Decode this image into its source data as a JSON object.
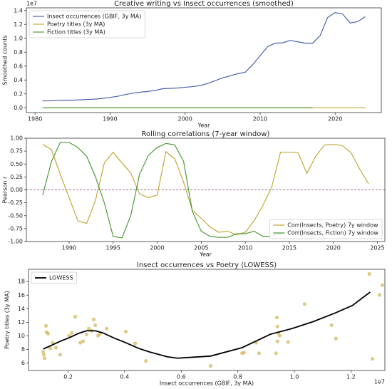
{
  "chart_data": [
    {
      "type": "line",
      "title": "Creative writing vs Insect occurrences (smoothed)",
      "x_label": "Year",
      "y_label": "Smoothed counts",
      "y_offset_label": "1e7",
      "x": [
        1981,
        1982,
        1983,
        1984,
        1985,
        1986,
        1987,
        1988,
        1989,
        1990,
        1991,
        1992,
        1993,
        1994,
        1995,
        1996,
        1997,
        1998,
        1999,
        2000,
        2001,
        2002,
        2003,
        2004,
        2005,
        2006,
        2007,
        2008,
        2009,
        2010,
        2011,
        2012,
        2013,
        2014,
        2015,
        2016,
        2017,
        2018,
        2019,
        2020,
        2021,
        2022,
        2023,
        2024
      ],
      "series": [
        {
          "name": "Insect occurrences (GBIF, 3y MA)",
          "color": "#4c62ad",
          "values": [
            0.1,
            0.1,
            0.105,
            0.11,
            0.11,
            0.115,
            0.12,
            0.125,
            0.135,
            0.15,
            0.165,
            0.19,
            0.21,
            0.225,
            0.235,
            0.25,
            0.275,
            0.28,
            0.285,
            0.295,
            0.305,
            0.32,
            0.35,
            0.39,
            0.43,
            0.46,
            0.49,
            0.51,
            0.62,
            0.75,
            0.88,
            0.93,
            0.935,
            0.97,
            0.95,
            0.93,
            0.93,
            1.04,
            1.3,
            1.37,
            1.35,
            1.22,
            1.24,
            1.31
          ]
        },
        {
          "name": "Poetry titles (3y MA)",
          "color": "#c2a93a",
          "values": [
            0,
            0,
            0,
            0,
            0,
            0,
            0,
            0,
            0,
            0,
            0,
            0,
            0,
            0,
            0,
            0,
            0,
            0,
            0,
            0,
            0,
            0,
            0,
            0,
            0,
            0,
            0,
            0,
            0,
            0,
            0,
            0,
            0,
            0,
            0,
            0,
            0,
            0,
            0,
            0,
            0,
            0,
            0,
            0
          ]
        },
        {
          "name": "Fiction titles (3y MA)",
          "color": "#4f9a3a",
          "values": [
            0,
            0,
            0,
            0,
            0,
            0,
            0,
            0,
            0,
            0,
            0,
            0,
            0,
            0,
            0,
            0,
            0,
            0,
            0,
            0,
            0,
            0,
            0,
            0,
            0,
            0,
            0,
            0,
            0,
            0,
            0,
            0,
            0,
            0,
            0,
            0,
            0,
            null,
            null,
            null,
            null,
            null,
            null,
            null
          ]
        }
      ],
      "xlim": [
        1978.85,
        2026.15
      ],
      "xticks": [
        1980,
        1990,
        2000,
        2010,
        2020
      ],
      "ylim": [
        -0.0685,
        1.4385
      ],
      "yticks": [
        {
          "value": 0,
          "label": "0.0"
        },
        0.2,
        0.4,
        0.6,
        0.8,
        {
          "value": 1,
          "label": "1.0"
        },
        1.2,
        1.4
      ],
      "legend": "upper left",
      "grid": false
    },
    {
      "type": "line",
      "title": "Rolling correlations (7-year window)",
      "x_label": "Year",
      "y_label": "Pearson r",
      "x": [
        1987,
        1988,
        1989,
        1990,
        1991,
        1992,
        1993,
        1994,
        1995,
        1996,
        1997,
        1998,
        1999,
        2000,
        2001,
        2002,
        2003,
        2004,
        2005,
        2006,
        2007,
        2008,
        2009,
        2010,
        2011,
        2012,
        2013,
        2014,
        2015,
        2016,
        2017,
        2018,
        2019,
        2020,
        2021,
        2022,
        2023,
        2024
      ],
      "series": [
        {
          "name": "Corr(Insects, Poetry) 7y window",
          "color": "#c2a93a",
          "values": [
            0.88,
            0.78,
            0.3,
            -0.15,
            -0.6,
            -0.65,
            -0.2,
            0.52,
            0.73,
            0.52,
            0.33,
            -0.08,
            -0.15,
            -0.1,
            0.74,
            0.6,
            0.15,
            -0.4,
            -0.55,
            -0.72,
            -0.82,
            -0.8,
            -0.87,
            -0.82,
            -0.6,
            -0.3,
            0.05,
            0.73,
            0.73,
            0.72,
            0.32,
            0.65,
            0.87,
            0.88,
            0.86,
            0.72,
            0.4,
            0.12
          ]
        },
        {
          "name": "Corr(Insects, Fiction) 7y window",
          "color": "#4f9a3a",
          "values": [
            -0.1,
            0.55,
            0.92,
            0.92,
            0.82,
            0.65,
            0.25,
            -0.25,
            -0.9,
            -0.93,
            -0.5,
            0.3,
            0.67,
            0.82,
            0.9,
            0.87,
            0.55,
            -0.42,
            -0.8,
            -0.9,
            -0.92,
            -0.92,
            -0.85,
            -0.85,
            -0.8,
            -0.9,
            -0.9,
            -0.85,
            -0.8,
            -0.8,
            -0.75,
            null,
            null,
            null,
            null,
            null,
            null,
            null
          ]
        }
      ],
      "hlines": [
        {
          "value": 0,
          "color": "#a06a9a",
          "style": "dashed"
        }
      ],
      "xlim": [
        1985.15,
        2025.85
      ],
      "xticks": [
        1990,
        1995,
        2000,
        2005,
        2010,
        2015,
        2020,
        2025
      ],
      "ylim": [
        -1,
        1
      ],
      "yticks": [
        {
          "value": -1,
          "label": "-1.00"
        },
        {
          "value": -0.75,
          "label": "-0.75"
        },
        {
          "value": -0.5,
          "label": "-0.50"
        },
        {
          "value": -0.25,
          "label": "-0.25"
        },
        {
          "value": 0,
          "label": "0.00"
        },
        {
          "value": 0.25,
          "label": "0.25"
        },
        {
          "value": 0.5,
          "label": "0.50"
        },
        {
          "value": 0.75,
          "label": "0.75"
        },
        {
          "value": 1,
          "label": "1.00"
        }
      ],
      "legend": "lower right",
      "grid": false
    },
    {
      "type": "scatter",
      "title": "Insect occurrences vs Poetry (LOWESS)",
      "x_label": "Insect occurrences (GBIF, 3y MA)",
      "y_label": "Poetry titles (3y MA)",
      "x_offset_label": "1e7",
      "series": [
        {
          "kind": "scatter",
          "color": "#d1b352",
          "x": [
            0.112,
            0.114,
            0.117,
            0.122,
            0.124,
            0.129,
            0.137,
            0.145,
            0.157,
            0.172,
            0.203,
            0.213,
            0.225,
            0.243,
            0.253,
            0.265,
            0.273,
            0.283,
            0.291,
            0.296,
            0.306,
            0.313,
            0.336,
            0.404,
            0.437,
            0.475,
            0.704,
            0.815,
            0.822,
            0.865,
            0.875,
            0.935,
            0.94,
            0.938,
            0.94,
            0.943,
            0.948,
            0.978,
            1.036,
            1.132,
            1.147,
            1.265,
            1.276,
            1.301,
            1.311
          ],
          "values": [
            7.65,
            7.24,
            6.72,
            11.48,
            10.55,
            10.34,
            8.17,
            9.0,
            8.27,
            7.24,
            10.03,
            10.45,
            12.83,
            9.0,
            9.2,
            10.24,
            11.07,
            10.76,
            12.41,
            11.58,
            10.03,
            10.34,
            11.07,
            10.65,
            8.9,
            6.31,
            5.59,
            7.45,
            7.55,
            9.0,
            7.45,
            7.45,
            9.2,
            12.72,
            11.38,
            10.45,
            10.03,
            9.1,
            14.69,
            11.58,
            9.62,
            19.13,
            6.62,
            16.03,
            17.48
          ]
        },
        {
          "kind": "line",
          "name": "LOWESS",
          "color": "#000000",
          "x": [
            0.112,
            0.14,
            0.172,
            0.203,
            0.235,
            0.265,
            0.296,
            0.323,
            0.361,
            0.404,
            0.449,
            0.487,
            0.55,
            0.588,
            0.704,
            0.815,
            0.915,
            0.991,
            1.066,
            1.142,
            1.205,
            1.268
          ],
          "values": [
            8.07,
            8.59,
            9.21,
            9.72,
            10.34,
            10.76,
            10.76,
            10.45,
            9.72,
            9.0,
            8.17,
            7.65,
            6.93,
            6.72,
            7.03,
            8.27,
            10.24,
            11.07,
            12.1,
            13.34,
            14.48,
            16.45
          ]
        }
      ],
      "xlim": [
        0.06,
        1.32
      ],
      "xticks": [
        0.2,
        0.4,
        0.6,
        0.8,
        {
          "value": 1,
          "label": "1.0"
        },
        1.2
      ],
      "ylim": [
        4.91,
        19.81
      ],
      "yticks": [
        6,
        8,
        10,
        12,
        14,
        16,
        18
      ],
      "legend": "upper left",
      "grid": false
    }
  ]
}
